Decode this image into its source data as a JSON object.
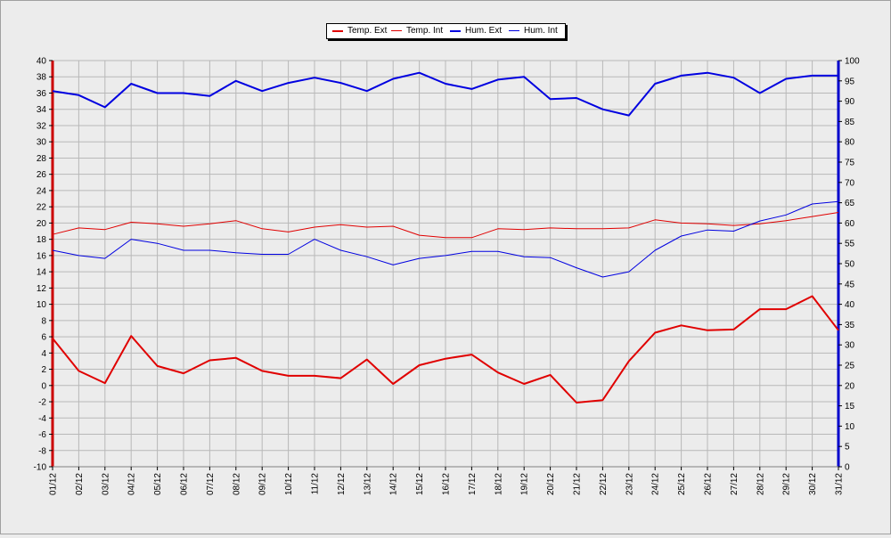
{
  "chart_data": {
    "type": "line",
    "title": "",
    "xlabel": "",
    "ylabel": "",
    "categories": [
      "01/12",
      "02/12",
      "03/12",
      "04/12",
      "05/12",
      "06/12",
      "07/12",
      "08/12",
      "09/12",
      "10/12",
      "11/12",
      "12/12",
      "13/12",
      "14/12",
      "15/12",
      "16/12",
      "17/12",
      "18/12",
      "19/12",
      "20/12",
      "21/12",
      "22/12",
      "23/12",
      "24/12",
      "25/12",
      "26/12",
      "27/12",
      "28/12",
      "29/12",
      "30/12",
      "31/12"
    ],
    "y_left": {
      "min": -10,
      "max": 40,
      "step": 2
    },
    "y_right": {
      "min": 0,
      "max": 100,
      "step": 5
    },
    "grid": true,
    "legend_position": "top-center",
    "series": [
      {
        "name": "Temp. Ext",
        "axis": "left",
        "color": "#e00000",
        "width": "thick",
        "values": [
          5.8,
          1.8,
          0.3,
          6.1,
          2.4,
          1.5,
          3.1,
          3.4,
          1.8,
          1.2,
          1.2,
          0.9,
          3.2,
          0.2,
          2.5,
          3.3,
          3.8,
          1.6,
          0.2,
          1.3,
          -2.1,
          -1.8,
          3.0,
          6.5,
          7.4,
          6.8,
          6.9,
          9.4,
          9.4,
          11.0,
          6.8
        ]
      },
      {
        "name": "Temp. Int",
        "axis": "left",
        "color": "#e00000",
        "width": "thin",
        "values": [
          18.6,
          19.4,
          19.2,
          20.1,
          19.9,
          19.6,
          19.9,
          20.3,
          19.3,
          18.9,
          19.5,
          19.8,
          19.5,
          19.6,
          18.5,
          18.2,
          18.2,
          19.3,
          19.2,
          19.4,
          19.3,
          19.3,
          19.4,
          20.4,
          20.0,
          19.9,
          19.7,
          19.9,
          20.3,
          20.8,
          21.3
        ]
      },
      {
        "name": "Hum. Ext",
        "axis": "right",
        "color": "#0000e0",
        "width": "thick",
        "values": [
          92.5,
          91.5,
          88.5,
          94.3,
          92.0,
          92.0,
          91.3,
          95.0,
          92.5,
          94.5,
          95.8,
          94.5,
          92.5,
          95.5,
          97.0,
          94.3,
          93.0,
          95.3,
          96.0,
          90.5,
          90.8,
          88.0,
          86.5,
          94.3,
          96.3,
          97.0,
          95.8,
          92.0,
          95.5,
          96.3,
          96.3
        ]
      },
      {
        "name": "Hum. Int",
        "axis": "right",
        "color": "#0000e0",
        "width": "thin",
        "values": [
          53.3,
          52.0,
          51.3,
          56.0,
          55.0,
          53.3,
          53.3,
          52.7,
          52.3,
          52.3,
          56.0,
          53.3,
          51.7,
          49.7,
          51.3,
          52.0,
          53.0,
          53.0,
          51.7,
          51.5,
          49.0,
          46.7,
          48.0,
          53.3,
          56.8,
          58.3,
          58.0,
          60.5,
          62.0,
          64.7,
          65.3
        ]
      }
    ]
  }
}
